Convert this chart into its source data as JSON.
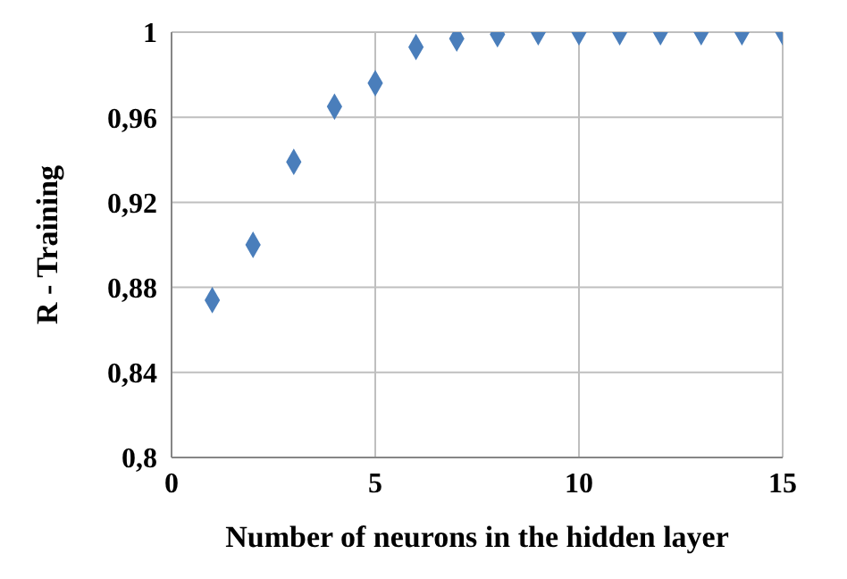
{
  "chart_data": {
    "type": "scatter",
    "xlabel": "Number of neurons in the hidden layer",
    "ylabel": "R - Training",
    "x": [
      1,
      2,
      3,
      4,
      5,
      6,
      7,
      8,
      9,
      10,
      11,
      12,
      13,
      14,
      15
    ],
    "series": [
      {
        "color": "#4a7ebb",
        "values": [
          0.874,
          0.9,
          0.939,
          0.965,
          0.976,
          0.993,
          0.997,
          0.999,
          1,
          1,
          1,
          1,
          1,
          1,
          1
        ]
      }
    ],
    "xlim": [
      0,
      15
    ],
    "xticks": [
      0,
      5,
      10,
      15
    ],
    "ylim": [
      0.8,
      1
    ],
    "yticks": [
      {
        "value": 0.8,
        "label": "0,8"
      },
      {
        "value": 0.84,
        "label": "0,84"
      },
      {
        "value": 0.88,
        "label": "0,88"
      },
      {
        "value": 0.92,
        "label": "0,92"
      },
      {
        "value": 0.96,
        "label": "0,96"
      },
      {
        "value": 1,
        "label": "1"
      }
    ],
    "grid": true,
    "marker": "diamond",
    "legend": false
  }
}
